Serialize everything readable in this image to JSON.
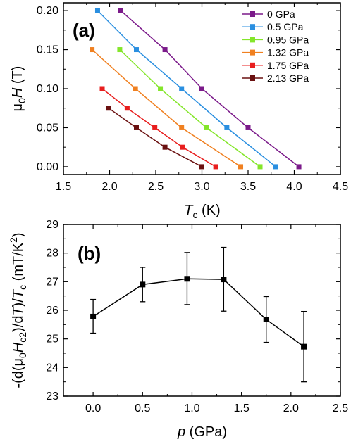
{
  "chart_data": [
    {
      "type": "line",
      "panel_label": "(a)",
      "xlabel": "T",
      "xlabel_sub": "c",
      "xlabel_unit": " (K)",
      "ylabel_prefix": "μ",
      "ylabel_sub": "0",
      "ylabel_var": "H",
      "ylabel_unit": " (T)",
      "xlim": [
        1.5,
        4.5
      ],
      "ylim": [
        -0.01,
        0.21
      ],
      "xticks": [
        "1.5",
        "2.0",
        "2.5",
        "3.0",
        "3.5",
        "4.0",
        "4.5"
      ],
      "yticks": [
        "0.00",
        "0.05",
        "0.10",
        "0.15",
        "0.20"
      ],
      "legend_position": "top-right",
      "grid": false,
      "series": [
        {
          "name": "0 GPa",
          "color": "#7b1a8a",
          "x": [
            2.12,
            2.6,
            3.0,
            3.5,
            4.05
          ],
          "y": [
            0.2,
            0.15,
            0.1,
            0.05,
            0.0
          ]
        },
        {
          "name": "0.5 GPa",
          "color": "#2a8fe0",
          "x": [
            1.87,
            2.29,
            2.78,
            3.27,
            3.8
          ],
          "y": [
            0.2,
            0.15,
            0.1,
            0.05,
            0.0
          ]
        },
        {
          "name": "0.95 GPa",
          "color": "#84e62a",
          "x": [
            2.11,
            2.55,
            3.05,
            3.63
          ],
          "y": [
            0.15,
            0.1,
            0.05,
            0.0
          ]
        },
        {
          "name": "1.32 GPa",
          "color": "#f08020",
          "x": [
            1.81,
            2.28,
            2.78,
            3.42
          ],
          "y": [
            0.15,
            0.1,
            0.05,
            0.0
          ]
        },
        {
          "name": "1.75 GPa",
          "color": "#e81e1e",
          "x": [
            1.92,
            2.19,
            2.49,
            2.79,
            3.15
          ],
          "y": [
            0.1,
            0.075,
            0.05,
            0.025,
            0.0
          ]
        },
        {
          "name": "2.13 GPa",
          "color": "#6a1010",
          "x": [
            1.99,
            2.29,
            2.6,
            3.0
          ],
          "y": [
            0.075,
            0.05,
            0.025,
            0.0
          ]
        }
      ]
    },
    {
      "type": "line",
      "panel_label": "(b)",
      "xlabel": "p",
      "xlabel_unit": " (GPa)",
      "ylabel_text": "-(d(μ0Hc2)/dT)/Tc (mT/K2)",
      "xlim": [
        -0.3,
        2.5
      ],
      "ylim": [
        23,
        29
      ],
      "xticks": [
        "0.0",
        "0.5",
        "1.0",
        "1.5",
        "2.0",
        "2.5"
      ],
      "yticks": [
        "23",
        "24",
        "25",
        "26",
        "27",
        "28",
        "29"
      ],
      "grid": false,
      "series": [
        {
          "color": "#000000",
          "x": [
            0.0,
            0.5,
            0.95,
            1.32,
            1.75,
            2.13
          ],
          "y": [
            25.78,
            26.9,
            27.1,
            27.08,
            25.68,
            24.73
          ],
          "err_low": [
            25.2,
            26.3,
            26.2,
            25.97,
            24.88,
            23.5
          ],
          "err_high": [
            26.38,
            27.5,
            28.02,
            28.2,
            26.48,
            25.96
          ]
        }
      ]
    }
  ]
}
